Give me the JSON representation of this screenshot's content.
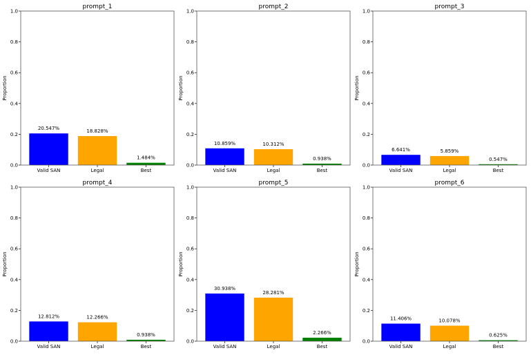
{
  "chart_data": [
    {
      "type": "bar",
      "title": "prompt_1",
      "categories": [
        "Valid SAN",
        "Legal",
        "Best"
      ],
      "values": [
        0.20547,
        0.18828,
        0.01484
      ],
      "labels": [
        "20.547%",
        "18.828%",
        "1.484%"
      ],
      "colors": [
        "#0000ff",
        "#ffa500",
        "#008000"
      ],
      "ylabel": "Proportion",
      "ylim": [
        0,
        1.0
      ],
      "yticks": [
        "0.0",
        "0.2",
        "0.4",
        "0.6",
        "0.8",
        "1.0"
      ]
    },
    {
      "type": "bar",
      "title": "prompt_2",
      "categories": [
        "Valid SAN",
        "Legal",
        "Best"
      ],
      "values": [
        0.10859,
        0.10312,
        0.00938
      ],
      "labels": [
        "10.859%",
        "10.312%",
        "0.938%"
      ],
      "colors": [
        "#0000ff",
        "#ffa500",
        "#008000"
      ],
      "ylabel": "Proportion",
      "ylim": [
        0,
        1.0
      ],
      "yticks": [
        "0.0",
        "0.2",
        "0.4",
        "0.6",
        "0.8",
        "1.0"
      ]
    },
    {
      "type": "bar",
      "title": "prompt_3",
      "categories": [
        "Valid SAN",
        "Legal",
        "Best"
      ],
      "values": [
        0.06641,
        0.05859,
        0.00547
      ],
      "labels": [
        "6.641%",
        "5.859%",
        "0.547%"
      ],
      "colors": [
        "#0000ff",
        "#ffa500",
        "#008000"
      ],
      "ylabel": "Proportion",
      "ylim": [
        0,
        1.0
      ],
      "yticks": [
        "0.0",
        "0.2",
        "0.4",
        "0.6",
        "0.8",
        "1.0"
      ]
    },
    {
      "type": "bar",
      "title": "prompt_4",
      "categories": [
        "Valid SAN",
        "Legal",
        "Best"
      ],
      "values": [
        0.12812,
        0.12266,
        0.00938
      ],
      "labels": [
        "12.812%",
        "12.266%",
        "0.938%"
      ],
      "colors": [
        "#0000ff",
        "#ffa500",
        "#008000"
      ],
      "ylabel": "Proportion",
      "ylim": [
        0,
        1.0
      ],
      "yticks": [
        "0.0",
        "0.2",
        "0.4",
        "0.6",
        "0.8",
        "1.0"
      ]
    },
    {
      "type": "bar",
      "title": "prompt_5",
      "categories": [
        "Valid SAN",
        "Legal",
        "Best"
      ],
      "values": [
        0.30938,
        0.28281,
        0.02266
      ],
      "labels": [
        "30.938%",
        "28.281%",
        "2.266%"
      ],
      "colors": [
        "#0000ff",
        "#ffa500",
        "#008000"
      ],
      "ylabel": "Proportion",
      "ylim": [
        0,
        1.0
      ],
      "yticks": [
        "0.0",
        "0.2",
        "0.4",
        "0.6",
        "0.8",
        "1.0"
      ]
    },
    {
      "type": "bar",
      "title": "prompt_6",
      "categories": [
        "Valid SAN",
        "Legal",
        "Best"
      ],
      "values": [
        0.11406,
        0.10078,
        0.00625
      ],
      "labels": [
        "11.406%",
        "10.078%",
        "0.625%"
      ],
      "colors": [
        "#0000ff",
        "#ffa500",
        "#008000"
      ],
      "ylabel": "Proportion",
      "ylim": [
        0,
        1.0
      ],
      "yticks": [
        "0.0",
        "0.2",
        "0.4",
        "0.6",
        "0.8",
        "1.0"
      ]
    }
  ]
}
